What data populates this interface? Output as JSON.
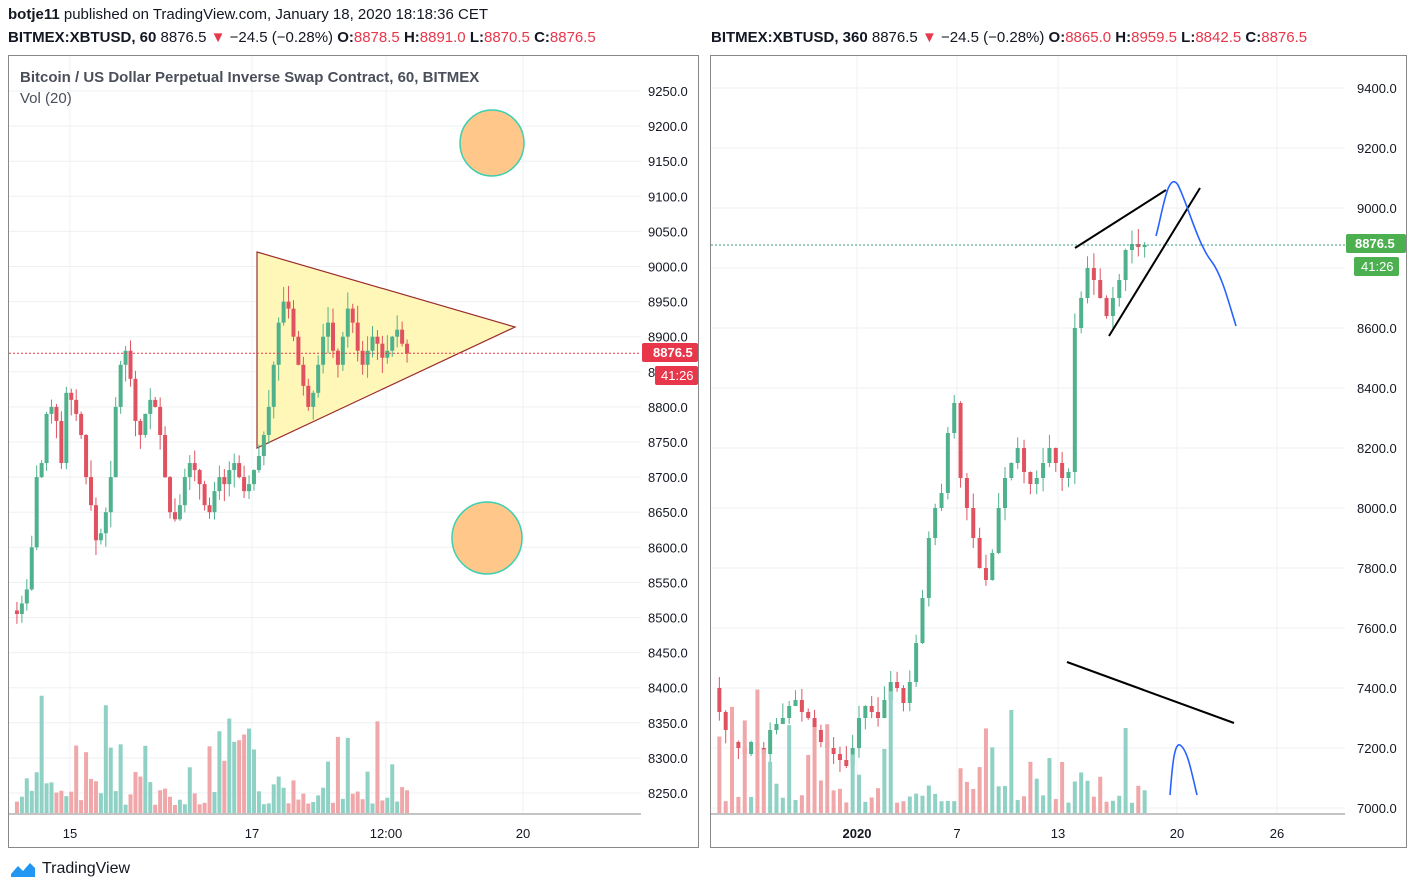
{
  "header": {
    "publisher": "botje11",
    "published_text": "published on TradingView.com, January 18, 2020 18:18:36 CET"
  },
  "left_quote": {
    "symbol": "BITMEX:XBTUSD, 60",
    "last": "8876.5",
    "change": "−24.5 (−0.28%)",
    "o_label": "O:",
    "o": "8878.5",
    "h_label": "H:",
    "h": "8891.0",
    "l_label": "L:",
    "l": "8870.5",
    "c_label": "C:",
    "c": "8876.5"
  },
  "right_quote": {
    "symbol": "BITMEX:XBTUSD, 360",
    "last": "8876.5",
    "change": "−24.5 (−0.28%)",
    "o_label": "O:",
    "o": "8865.0",
    "h_label": "H:",
    "h": "8959.5",
    "l_label": "L:",
    "l": "8842.5",
    "c_label": "C:",
    "c": "8876.5"
  },
  "footer": {
    "brand": "TradingView"
  },
  "colors": {
    "up": "#4fb28d",
    "down": "#e05260",
    "up_vol": "#8fd1c4",
    "down_vol": "#f0a7a9",
    "price_tag": "#e8364b",
    "price_tag_right": "#4caf50",
    "triangle": "#fff7b8",
    "circle": "#ffc88a"
  },
  "chart_data": [
    {
      "type": "candlestick",
      "title": "Bitcoin / US Dollar Perpetual Inverse Swap Contract, 60, BITMEX",
      "subtitle": "Vol (20)",
      "y_ticks": [
        9250.0,
        9200.0,
        9150.0,
        9100.0,
        9050.0,
        9000.0,
        8950.0,
        8900.0,
        8850.0,
        8800.0,
        8750.0,
        8700.0,
        8650.0,
        8600.0,
        8550.0,
        8500.0,
        8450.0,
        8400.0,
        8350.0,
        8300.0,
        8250.0
      ],
      "y_tick_labels": [
        "9250.0",
        "9200.0",
        "9150.0",
        "9100.0",
        "9050.0",
        "9000.0",
        "8950.0",
        "8900.0",
        "8850.0",
        "8800.0",
        "8750.0",
        "8700.0",
        "8650.0",
        "8600.0",
        "8550.0",
        "8500.0",
        "8450.0",
        "8400.0",
        "8350.0",
        "8300.0",
        "8250.0"
      ],
      "ylim": [
        8220,
        9300
      ],
      "x_ticks": [
        "15",
        "17",
        "12:00",
        "20"
      ],
      "current_price": "8876.5",
      "countdown": "41:26",
      "grid": true,
      "annotations": [
        "symmetrical triangle",
        "two circles"
      ]
    },
    {
      "type": "candlestick",
      "y_ticks": [
        9400.0,
        9200.0,
        9000.0,
        8800.0,
        8600.0,
        8400.0,
        8200.0,
        8000.0,
        7800.0,
        7600.0,
        7400.0,
        7200.0,
        7000.0
      ],
      "y_tick_labels": [
        "9400.0",
        "9200.0",
        "9000.0",
        "8800.0",
        "8600.0",
        "8400.0",
        "8200.0",
        "8000.0",
        "7800.0",
        "7600.0",
        "7400.0",
        "7200.0",
        "7000.0"
      ],
      "ylim": [
        6990,
        9460
      ],
      "x_ticks": [
        "2020",
        "7",
        "13",
        "20",
        "26"
      ],
      "current_price": "8876.5",
      "countdown": "41:26",
      "grid": true,
      "annotations": [
        "rising wedge",
        "volume trendline",
        "projected path"
      ]
    }
  ]
}
